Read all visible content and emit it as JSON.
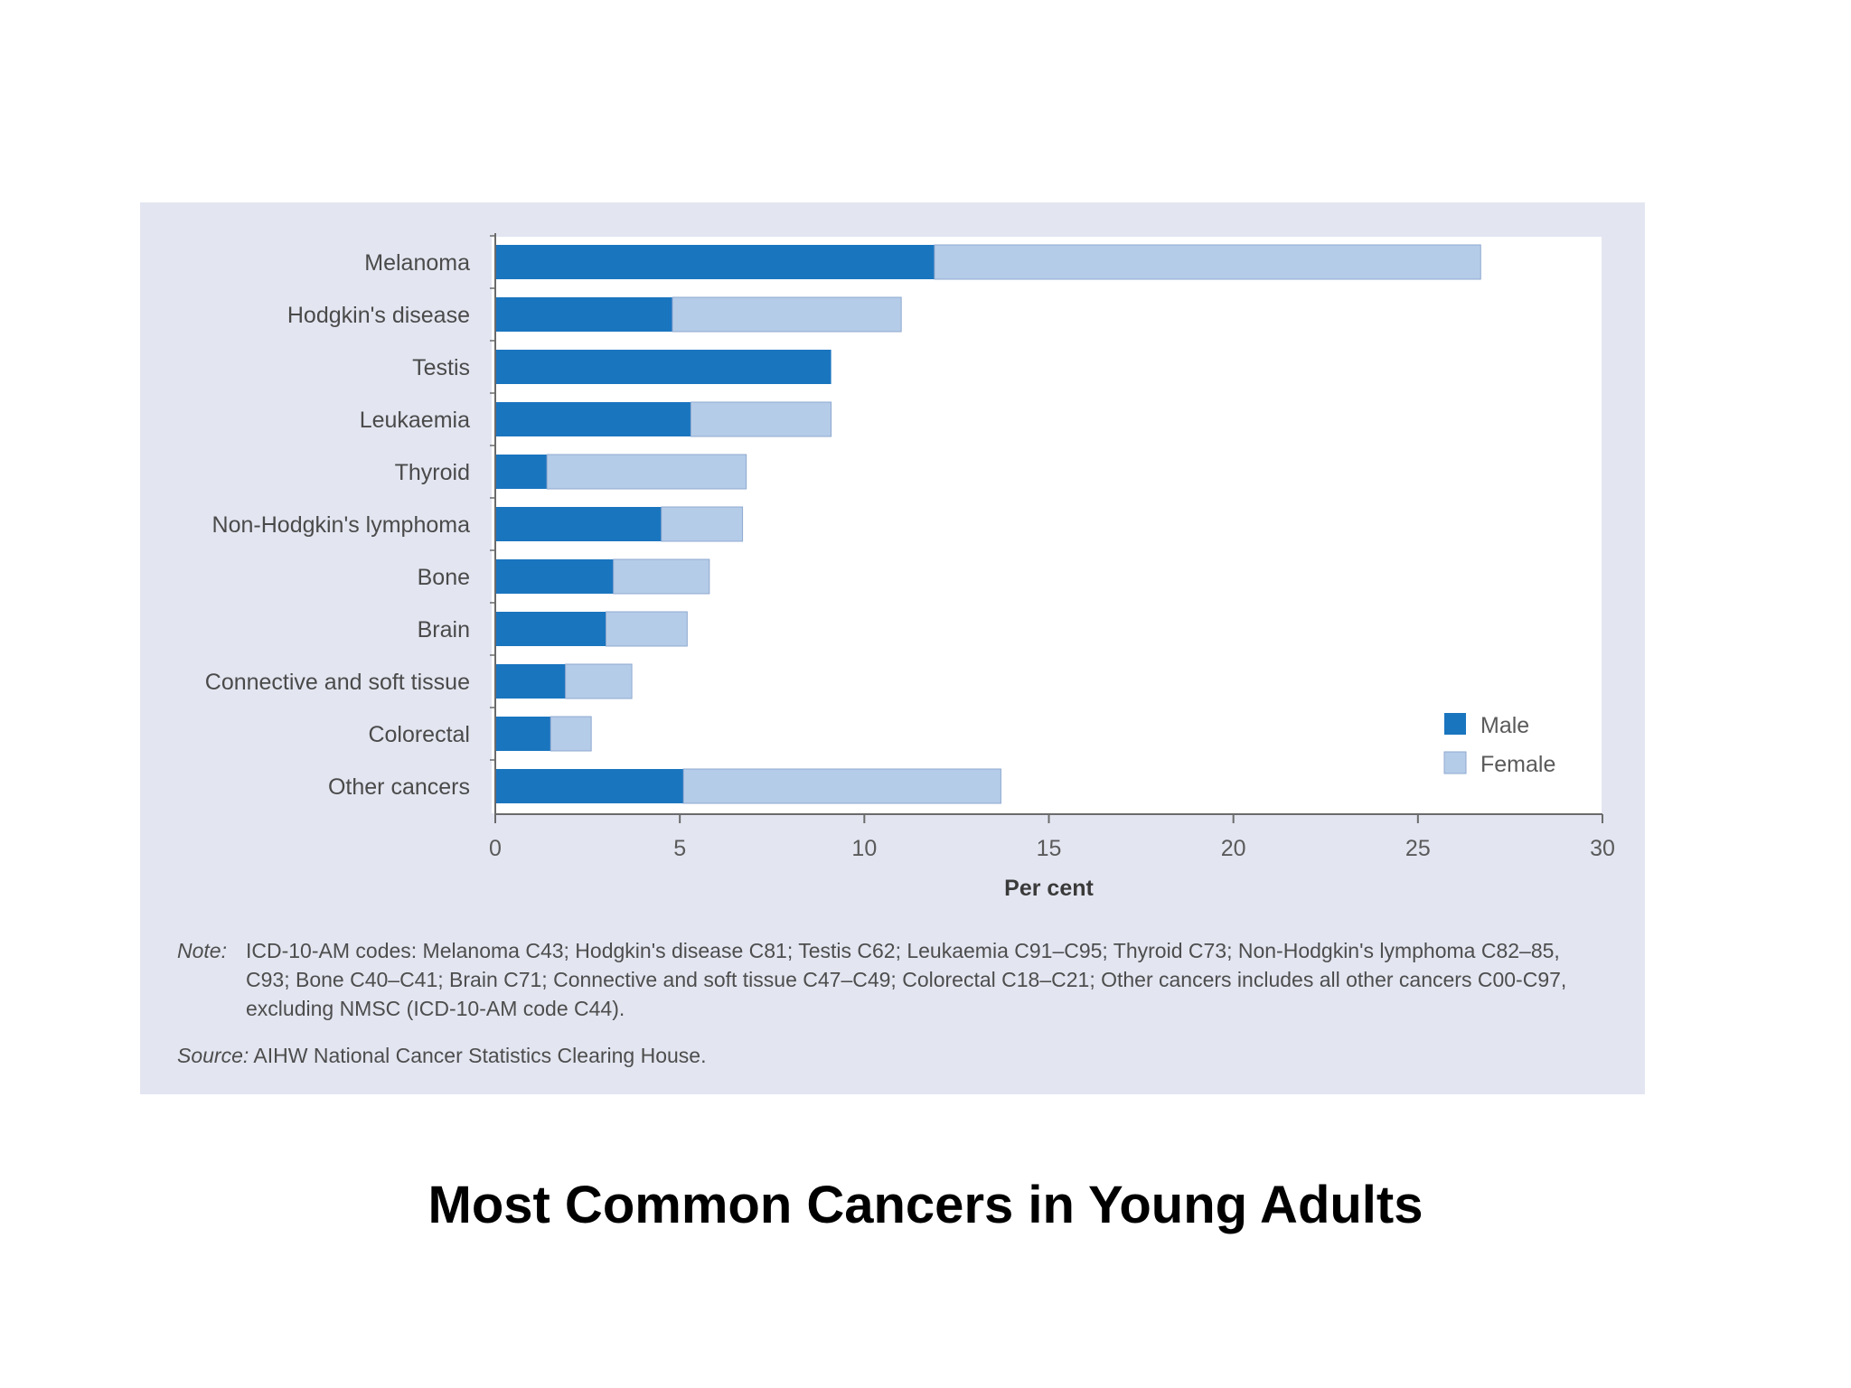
{
  "slide": {
    "title": "Most Common Cancers in Young Adults"
  },
  "colors": {
    "male": "#1a75bf",
    "female": "#b5cce8",
    "female_stroke": "#8fa9cf",
    "panel_background": "#e3e6f1",
    "plot_background": "#ffffff",
    "axis": "#6b6b6b"
  },
  "chart_data": {
    "type": "bar",
    "orientation": "horizontal",
    "stacked": true,
    "title": "",
    "xlabel": "Per cent",
    "ylabel": "",
    "xlim": [
      0,
      30
    ],
    "xticks": [
      0,
      5,
      10,
      15,
      20,
      25,
      30
    ],
    "grid": false,
    "legend_position": "bottom-right",
    "categories": [
      "Melanoma",
      "Hodgkin's disease",
      "Testis",
      "Leukaemia",
      "Thyroid",
      "Non-Hodgkin's lymphoma",
      "Bone",
      "Brain",
      "Connective and soft tissue",
      "Colorectal",
      "Other cancers"
    ],
    "series": [
      {
        "name": "Male",
        "values": [
          11.9,
          4.8,
          9.1,
          5.3,
          1.4,
          4.5,
          3.2,
          3.0,
          1.9,
          1.5,
          5.1
        ]
      },
      {
        "name": "Female",
        "values": [
          14.8,
          6.2,
          0,
          3.8,
          5.4,
          2.2,
          2.6,
          2.2,
          1.8,
          1.1,
          8.6
        ]
      }
    ]
  },
  "footnotes": {
    "note_label": "Note:",
    "note_text": "ICD-10-AM codes: Melanoma C43; Hodgkin's disease C81; Testis C62; Leukaemia C91–C95; Thyroid C73; Non-Hodgkin's lymphoma C82–85, C93; Bone C40–C41; Brain C71; Connective and soft tissue C47–C49; Colorectal C18–C21; Other cancers includes all other cancers C00-C97, excluding NMSC (ICD-10-AM code C44).",
    "source_label": "Source:",
    "source_text": "AIHW National Cancer Statistics Clearing House."
  }
}
